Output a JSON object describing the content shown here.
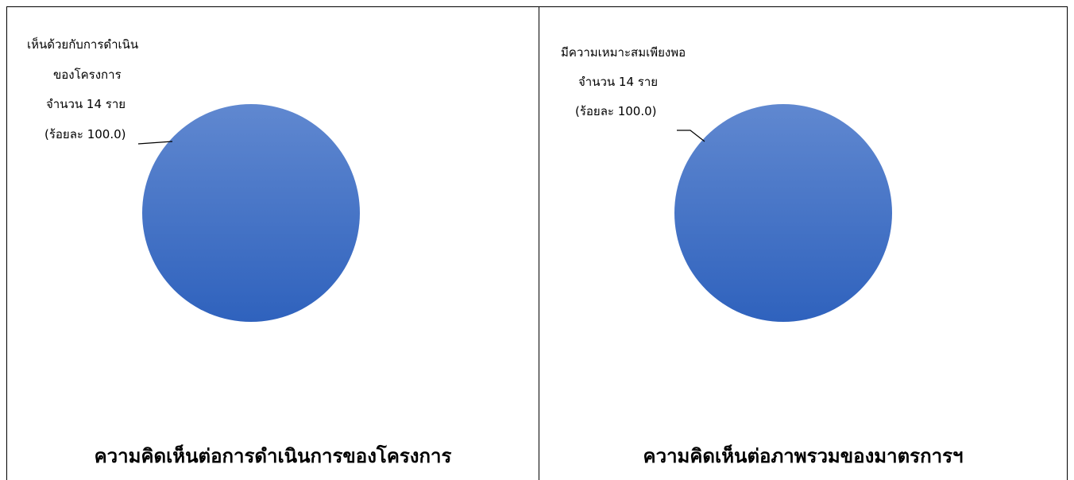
{
  "chart_data": [
    {
      "type": "pie",
      "title": "ความคิดเห็นต่อการดำเนินการของโครงการ",
      "categories": [
        "เห็นด้วยกับการดำเนินของโครงการ"
      ],
      "values": [
        14
      ],
      "percent": [
        100.0
      ],
      "color": "#4472C4",
      "data_label": {
        "line1": "เห็นด้วยกับการดำเนิน",
        "line2": "ของโครงการ",
        "line3": "จำนวน 14 ราย",
        "line4": "(ร้อยละ 100.0)"
      }
    },
    {
      "type": "pie",
      "title": "ความคิดเห็นต่อภาพรวมของมาตรการฯ",
      "categories": [
        "มีความเหมาะสมเพียงพอ"
      ],
      "values": [
        14
      ],
      "percent": [
        100.0
      ],
      "color": "#4472C4",
      "data_label": {
        "line1": "มีความเหมาะสมเพียงพอ",
        "line2": "จำนวน 14 ราย",
        "line3": "(ร้อยละ 100.0)"
      }
    }
  ]
}
